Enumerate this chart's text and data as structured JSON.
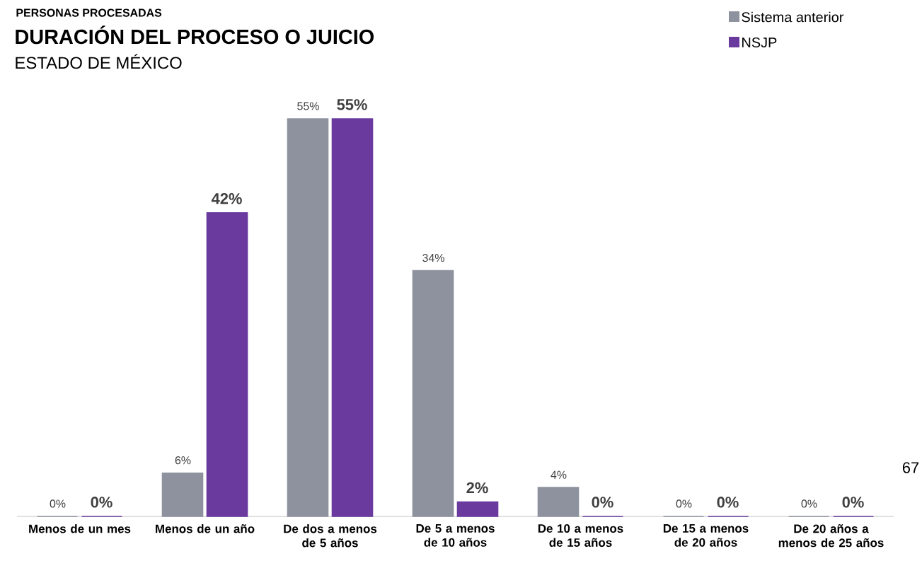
{
  "chart_data": {
    "type": "bar",
    "title": "DURACIÓN DEL PROCESO O JUICIO",
    "subtitle": "ESTADO DE MÉXICO",
    "annotations": [
      "PERSONAS PROCESADAS",
      "67"
    ],
    "categories": [
      "Menos de un mes",
      "Menos de un año",
      "De dos a menos de 5 años",
      "De 5 a menos de 10 años",
      "De 10 a menos de 15 años",
      "De 15 a menos de 20 años",
      "De 20 años a menos de 25 años"
    ],
    "series": [
      {
        "name": "Sistema anterior",
        "color": "#8e929e",
        "values": [
          0,
          6,
          55,
          34,
          4,
          0,
          0
        ],
        "value_labels": [
          "0%",
          "6%",
          "55%",
          "34%",
          "4%",
          "0%",
          "0%"
        ]
      },
      {
        "name": "NSJP",
        "color": "#6a3a9f",
        "values": [
          0,
          42,
          55,
          2,
          0,
          0,
          0
        ],
        "value_labels": [
          "0%",
          "42%",
          "55%",
          "2%",
          "0%",
          "0%",
          "0%"
        ]
      }
    ],
    "legend": "top right"
  }
}
